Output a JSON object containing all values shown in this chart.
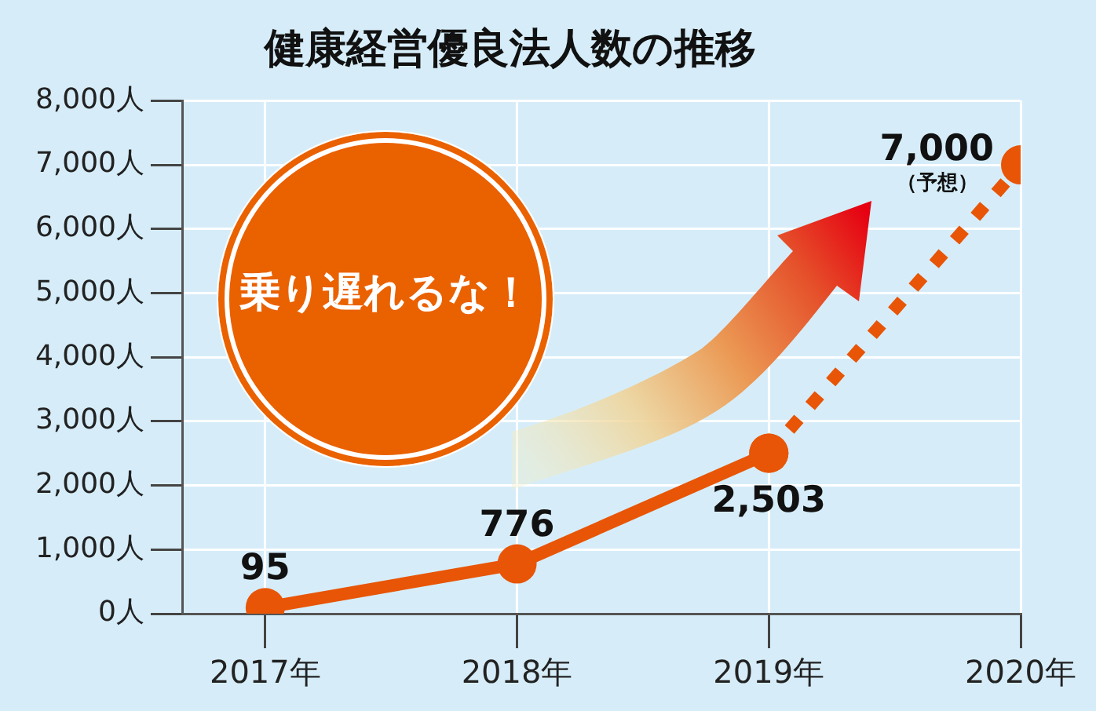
{
  "chart_data": {
    "type": "line",
    "title": "健康経営優良法人数の推移",
    "categories": [
      "2017年",
      "2018年",
      "2019年",
      "2020年"
    ],
    "series": [
      {
        "color": "#e85506",
        "values": [
          95,
          776,
          2503,
          null
        ],
        "value_labels": [
          "95",
          "776",
          "2,503",
          null
        ],
        "line_style": "solid"
      },
      {
        "color": "#e85506",
        "values": [
          null,
          null,
          2503,
          7000
        ],
        "value_labels": [
          null,
          null,
          null,
          "7,000"
        ],
        "line_style": "dotted"
      }
    ],
    "ylim": [
      0,
      8000
    ],
    "yticks": [
      {
        "value": 0,
        "label": "0人"
      },
      {
        "value": 1000,
        "label": "1,000人"
      },
      {
        "value": 2000,
        "label": "2,000人"
      },
      {
        "value": 3000,
        "label": "3,000人"
      },
      {
        "value": 4000,
        "label": "4,000人"
      },
      {
        "value": 5000,
        "label": "5,000人"
      },
      {
        "value": 6000,
        "label": "6,000人"
      },
      {
        "value": 7000,
        "label": "7,000人"
      },
      {
        "value": 8000,
        "label": "8,000人"
      }
    ],
    "grid": true,
    "legend": false,
    "marker": "circle",
    "annotations": [
      "乗り遅れるな！",
      {
        "text": "（予想）",
        "x": "2020年",
        "y": 7000
      }
    ]
  }
}
